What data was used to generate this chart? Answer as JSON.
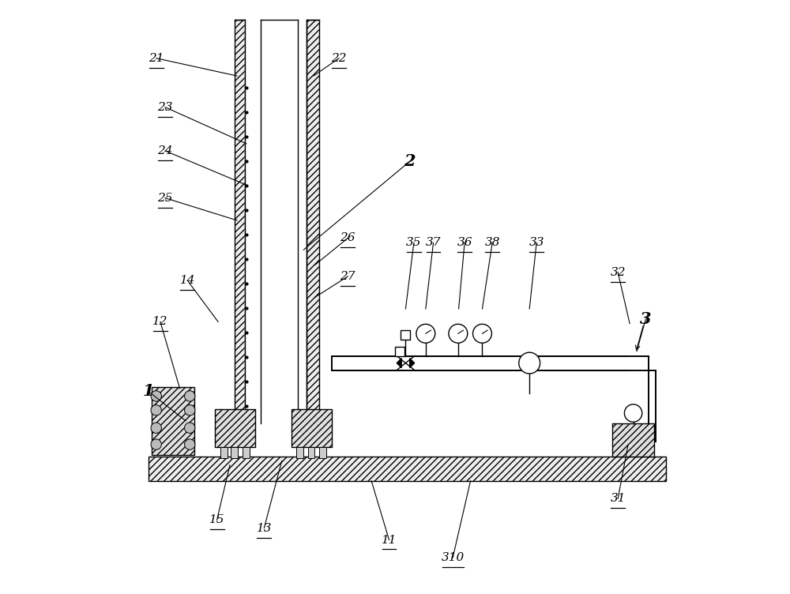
{
  "bg_color": "#ffffff",
  "line_color": "#000000",
  "fig_width": 10.0,
  "fig_height": 7.52,
  "leaders": {
    "21": [
      0.095,
      0.905,
      0.232,
      0.875
    ],
    "22": [
      0.405,
      0.905,
      0.362,
      0.875
    ],
    "2": [
      0.525,
      0.73,
      0.345,
      0.58
    ],
    "23": [
      0.11,
      0.822,
      0.248,
      0.76
    ],
    "24": [
      0.11,
      0.748,
      0.248,
      0.69
    ],
    "25": [
      0.11,
      0.668,
      0.232,
      0.63
    ],
    "26": [
      0.42,
      0.6,
      0.365,
      0.555
    ],
    "27": [
      0.42,
      0.535,
      0.365,
      0.5
    ],
    "1": [
      0.082,
      0.34,
      0.145,
      0.29
    ],
    "12": [
      0.102,
      0.458,
      0.135,
      0.345
    ],
    "14": [
      0.148,
      0.528,
      0.2,
      0.458
    ],
    "11": [
      0.49,
      0.088,
      0.46,
      0.188
    ],
    "13": [
      0.278,
      0.108,
      0.308,
      0.222
    ],
    "15": [
      0.198,
      0.122,
      0.22,
      0.215
    ],
    "35": [
      0.532,
      0.592,
      0.518,
      0.48
    ],
    "37": [
      0.565,
      0.592,
      0.552,
      0.48
    ],
    "36": [
      0.618,
      0.592,
      0.608,
      0.48
    ],
    "38": [
      0.665,
      0.592,
      0.648,
      0.48
    ],
    "33": [
      0.74,
      0.592,
      0.728,
      0.48
    ],
    "32": [
      0.878,
      0.542,
      0.898,
      0.455
    ],
    "3": [
      0.925,
      0.462,
      0.91,
      0.408
    ],
    "31": [
      0.878,
      0.158,
      0.895,
      0.248
    ],
    "310": [
      0.598,
      0.058,
      0.628,
      0.188
    ]
  },
  "bold_labels": [
    "1",
    "2",
    "3"
  ],
  "underline_labels": [
    "21",
    "22",
    "23",
    "24",
    "25",
    "26",
    "27",
    "11",
    "12",
    "13",
    "14",
    "15",
    "31",
    "32",
    "33",
    "35",
    "36",
    "37",
    "38",
    "310"
  ]
}
